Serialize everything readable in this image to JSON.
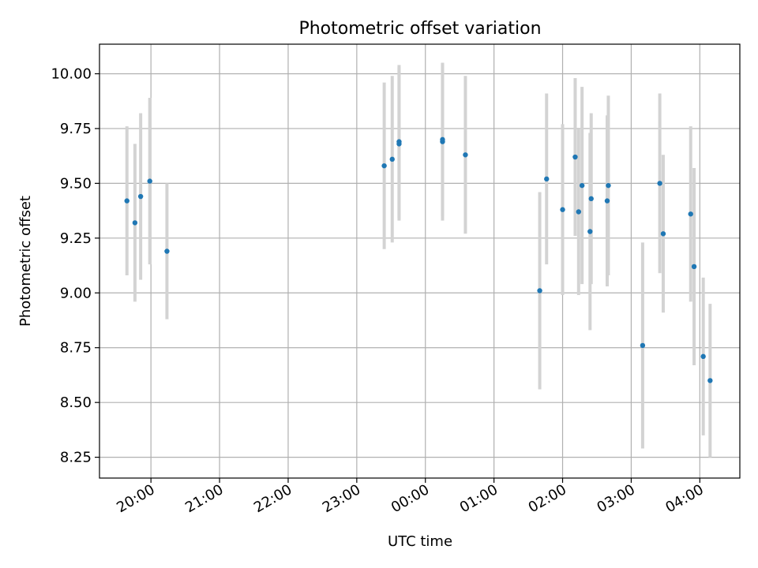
{
  "chart_data": {
    "type": "scatter",
    "title": "Photometric offset variation",
    "xlabel": "UTC time",
    "ylabel": "Photometric offset",
    "xlim": [
      "19:15",
      "04:35"
    ],
    "ylim": [
      8.155,
      10.135
    ],
    "grid": true,
    "x_ticks": [
      "20:00",
      "21:00",
      "22:00",
      "23:00",
      "00:00",
      "01:00",
      "02:00",
      "03:00",
      "04:00"
    ],
    "y_ticks": [
      "8.25",
      "8.50",
      "8.75",
      "9.00",
      "9.25",
      "9.50",
      "9.75",
      "10.00"
    ],
    "colors": {
      "points": "#1f77b4",
      "error_bars": "#d3d3d3",
      "grid": "#b0b0b0"
    },
    "points": [
      {
        "x": "19:39",
        "y": 9.42,
        "err": 0.34
      },
      {
        "x": "19:46",
        "y": 9.32,
        "err": 0.36
      },
      {
        "x": "19:51",
        "y": 9.44,
        "err": 0.38
      },
      {
        "x": "19:59",
        "y": 9.51,
        "err": 0.38
      },
      {
        "x": "20:14",
        "y": 9.19,
        "err": 0.31
      },
      {
        "x": "23:24",
        "y": 9.58,
        "err": 0.38
      },
      {
        "x": "23:31",
        "y": 9.61,
        "err": 0.38
      },
      {
        "x": "23:37",
        "y": 9.69,
        "err": 0.35
      },
      {
        "x": "23:37",
        "y": 9.68,
        "err": 0.35
      },
      {
        "x": "00:15",
        "y": 9.69,
        "err": 0.36
      },
      {
        "x": "00:15",
        "y": 9.7,
        "err": 0.35
      },
      {
        "x": "00:35",
        "y": 9.63,
        "err": 0.36
      },
      {
        "x": "01:40",
        "y": 9.01,
        "err": 0.45
      },
      {
        "x": "01:46",
        "y": 9.52,
        "err": 0.39
      },
      {
        "x": "02:00",
        "y": 9.38,
        "err": 0.39
      },
      {
        "x": "02:11",
        "y": 9.62,
        "err": 0.36
      },
      {
        "x": "02:14",
        "y": 9.37,
        "err": 0.38
      },
      {
        "x": "02:17",
        "y": 9.49,
        "err": 0.45
      },
      {
        "x": "02:24",
        "y": 9.28,
        "err": 0.45
      },
      {
        "x": "02:25",
        "y": 9.43,
        "err": 0.39
      },
      {
        "x": "02:39",
        "y": 9.42,
        "err": 0.39
      },
      {
        "x": "02:40",
        "y": 9.49,
        "err": 0.41
      },
      {
        "x": "03:10",
        "y": 8.76,
        "err": 0.47
      },
      {
        "x": "03:25",
        "y": 9.5,
        "err": 0.41
      },
      {
        "x": "03:28",
        "y": 9.27,
        "err": 0.36
      },
      {
        "x": "03:52",
        "y": 9.36,
        "err": 0.4
      },
      {
        "x": "03:55",
        "y": 9.12,
        "err": 0.45
      },
      {
        "x": "04:03",
        "y": 8.71,
        "err": 0.36
      },
      {
        "x": "04:09",
        "y": 8.6,
        "err": 0.35
      }
    ]
  }
}
